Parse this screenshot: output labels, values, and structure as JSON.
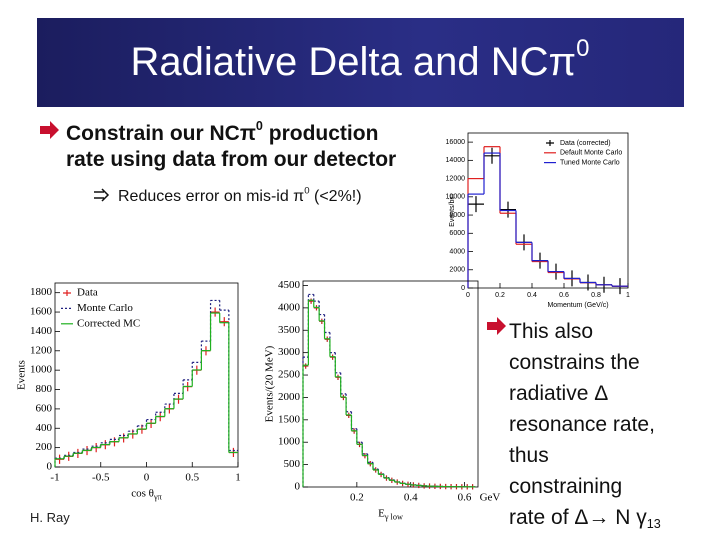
{
  "title": {
    "text": "Radiative Delta and NCπ",
    "sup": "0"
  },
  "bullet1": {
    "line1": "Constrain our NCπ",
    "sup": "0",
    "line1_rest": " production",
    "line2": "rate using data from our detector"
  },
  "subbullet": {
    "text": "Reduces error on mis-id π",
    "sup": "0",
    "rest": " (<2%!)"
  },
  "bullet2": {
    "lines": [
      "This also",
      "constrains the",
      "radiative Δ",
      "resonance rate,",
      "thus",
      "constraining",
      "rate of Δ→ N γ"
    ],
    "sub": "13"
  },
  "footer": "H. Ray",
  "chart_data": [
    {
      "type": "histogram",
      "ylabel": "Events/bin",
      "xlabel": "Momentum (GeV/c)",
      "xlim": [
        0,
        1
      ],
      "ylim": [
        0,
        17000
      ],
      "xticks": [
        0,
        0.2,
        0.4,
        0.6,
        0.8,
        1
      ],
      "yticks": [
        0,
        2000,
        4000,
        6000,
        8000,
        10000,
        12000,
        14000,
        16000
      ],
      "legend": "upper right",
      "bins": [
        0,
        0.1,
        0.2,
        0.3,
        0.4,
        0.5,
        0.6,
        0.7,
        0.8,
        0.9,
        1
      ],
      "series": [
        {
          "name": "Data (corrected)",
          "color": "#000000",
          "style": "markers",
          "values": [
            9200,
            14500,
            8600,
            5000,
            3000,
            1800,
            1050,
            600,
            350,
            200
          ]
        },
        {
          "name": "Default Monte Carlo",
          "color": "#e02020",
          "style": "steps",
          "values": [
            12000,
            15500,
            8200,
            4800,
            2900,
            1700,
            1000,
            580,
            340,
            190
          ]
        },
        {
          "name": "Tuned Monte Carlo",
          "color": "#2020d0",
          "style": "steps",
          "values": [
            10300,
            14800,
            8500,
            5000,
            3000,
            1800,
            1050,
            600,
            350,
            200
          ]
        }
      ]
    },
    {
      "type": "histogram",
      "ylabel": "Events",
      "xlabel": "cos θ",
      "xlabel_sub": "γπ",
      "xlim": [
        -1,
        1
      ],
      "ylim": [
        0,
        1900
      ],
      "xticks": [
        -1,
        -0.5,
        0,
        0.5,
        1
      ],
      "yticks": [
        0,
        200,
        400,
        600,
        800,
        1000,
        1200,
        1400,
        1600,
        1800
      ],
      "legend": "upper left",
      "bins": [
        -1,
        -0.9,
        -0.8,
        -0.7,
        -0.6,
        -0.5,
        -0.4,
        -0.3,
        -0.2,
        -0.1,
        0,
        0.1,
        0.2,
        0.3,
        0.4,
        0.5,
        0.6,
        0.7,
        0.8,
        0.9,
        1
      ],
      "series": [
        {
          "name": "Data",
          "color": "#e02020",
          "style": "markers",
          "values": [
            80,
            110,
            140,
            170,
            200,
            230,
            260,
            300,
            340,
            390,
            450,
            520,
            600,
            700,
            830,
            1000,
            1200,
            1600,
            1500,
            150
          ]
        },
        {
          "name": "Monte Carlo",
          "color": "#202080",
          "style": "steps",
          "dash": true,
          "values": [
            90,
            120,
            150,
            185,
            215,
            250,
            285,
            325,
            370,
            425,
            490,
            565,
            650,
            760,
            900,
            1080,
            1300,
            1720,
            1620,
            170
          ]
        },
        {
          "name": "Corrected MC",
          "color": "#20b020",
          "style": "steps",
          "values": [
            85,
            112,
            142,
            172,
            202,
            232,
            262,
            302,
            342,
            392,
            452,
            522,
            602,
            702,
            832,
            1002,
            1202,
            1590,
            1490,
            150
          ]
        }
      ]
    },
    {
      "type": "histogram",
      "ylabel": "Events/(20 MeV)",
      "xlabel": "E",
      "xlabel_sub": "γ low",
      "x_unit": "GeV",
      "xlim": [
        0,
        0.65
      ],
      "ylim": [
        0,
        4600
      ],
      "xticks": [
        0.2,
        0.4,
        0.6
      ],
      "yticks": [
        0,
        500,
        1000,
        1500,
        2000,
        2500,
        3000,
        3500,
        4000,
        4500
      ],
      "bins": [
        0,
        0.02,
        0.04,
        0.06,
        0.08,
        0.1,
        0.12,
        0.14,
        0.16,
        0.18,
        0.2,
        0.22,
        0.24,
        0.26,
        0.28,
        0.3,
        0.32,
        0.34,
        0.36,
        0.38,
        0.4,
        0.42,
        0.44,
        0.46,
        0.48,
        0.5,
        0.52,
        0.54,
        0.56,
        0.58,
        0.6,
        0.62,
        0.64
      ],
      "series": [
        {
          "name": "Data",
          "color": "#c02020",
          "style": "markers",
          "values": [
            2700,
            4150,
            4000,
            3700,
            3300,
            2900,
            2450,
            2000,
            1600,
            1250,
            950,
            700,
            520,
            380,
            280,
            200,
            150,
            110,
            80,
            60,
            45,
            35,
            25,
            20,
            15,
            12,
            10,
            8,
            6,
            5,
            4,
            3
          ]
        },
        {
          "name": "Monte Carlo",
          "color": "#202080",
          "style": "steps",
          "dash": true,
          "values": [
            2900,
            4300,
            4150,
            3850,
            3450,
            3000,
            2550,
            2080,
            1680,
            1300,
            1000,
            740,
            550,
            400,
            295,
            210,
            160,
            115,
            85,
            63,
            47,
            36,
            26,
            21,
            16,
            13,
            10,
            8,
            6,
            5,
            4,
            3
          ]
        },
        {
          "name": "Corrected MC",
          "color": "#20b020",
          "style": "steps",
          "values": [
            2720,
            4170,
            4010,
            3710,
            3310,
            2910,
            2460,
            2010,
            1610,
            1255,
            955,
            705,
            522,
            382,
            282,
            201,
            151,
            111,
            81,
            61,
            45,
            35,
            25,
            20,
            15,
            12,
            10,
            8,
            6,
            5,
            4,
            3
          ]
        }
      ]
    }
  ]
}
